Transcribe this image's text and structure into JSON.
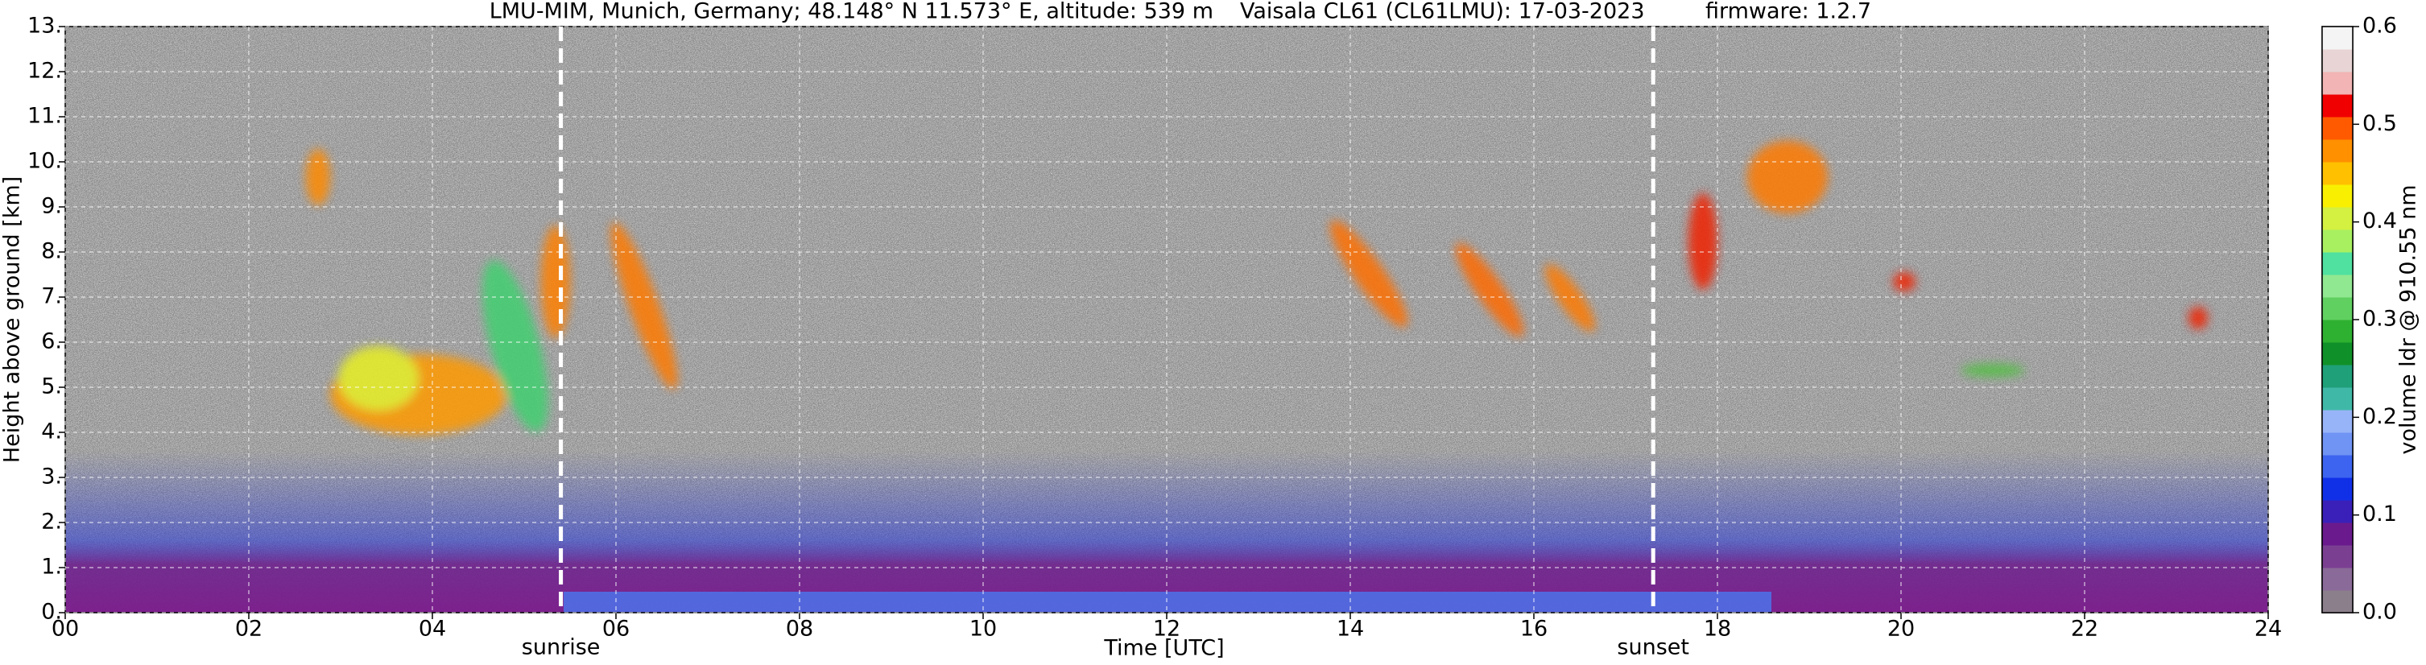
{
  "chart_data": {
    "type": "heatmap",
    "title_parts": [
      "LMU-MIM, Munich, Germany; 48.148° N 11.573° E, altitude: 539 m",
      "Vaisala CL61 (CL61LMU): 17-03-2023",
      "firmware: 1.2.7"
    ],
    "x_label": "Time [UTC]",
    "y_label": "Height above ground [km]",
    "xlim": [
      0,
      24
    ],
    "xticks": [
      {
        "value": 0,
        "label": "00"
      },
      {
        "value": 2,
        "label": "02"
      },
      {
        "value": 4,
        "label": "04"
      },
      {
        "value": 6,
        "label": "06"
      },
      {
        "value": 8,
        "label": "08"
      },
      10,
      12,
      14,
      16,
      18,
      20,
      22,
      24
    ],
    "ylim": [
      0,
      13
    ],
    "yticks": [
      {
        "value": 0,
        "label": "0."
      },
      {
        "value": 1,
        "label": "1."
      },
      {
        "value": 2,
        "label": "2."
      },
      {
        "value": 3,
        "label": "3."
      },
      {
        "value": 4,
        "label": "4."
      },
      {
        "value": 5,
        "label": "5."
      },
      {
        "value": 6,
        "label": "6."
      },
      {
        "value": 7,
        "label": "7."
      },
      {
        "value": 8,
        "label": "8."
      },
      {
        "value": 9,
        "label": "9."
      },
      {
        "value": 10,
        "label": "10."
      },
      {
        "value": 11,
        "label": "11."
      },
      {
        "value": 12,
        "label": "12."
      },
      {
        "value": 13,
        "label": "13."
      }
    ],
    "grid": true,
    "annotations": [
      {
        "text": "sunrise",
        "x": 5.4
      },
      {
        "text": "sunset",
        "x": 17.3
      }
    ],
    "colorbar": {
      "label": "volume ldr @ 910.55 nm",
      "lim": [
        0,
        0.6
      ],
      "ticks": [
        {
          "value": 0,
          "label": "0.0"
        },
        0.1,
        0.2,
        0.3,
        0.4,
        0.5,
        0.6
      ],
      "colors": [
        "#8c7f8c",
        "#8a6a98",
        "#7b3f92",
        "#6a1a8c",
        "#3a20b8",
        "#1030e8",
        "#3c64f0",
        "#6f94f4",
        "#98b4f8",
        "#40b8a8",
        "#20a078",
        "#109028",
        "#2eb030",
        "#60d060",
        "#90e890",
        "#50e0a0",
        "#a8f060",
        "#d4f040",
        "#f8f000",
        "#ffc000",
        "#ff9000",
        "#ff5a00",
        "#f00000",
        "#f2b4b4",
        "#e8d4d4",
        "#f4f4f4"
      ]
    }
  }
}
